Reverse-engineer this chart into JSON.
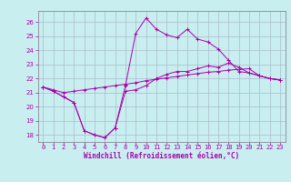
{
  "xlabel": "Windchill (Refroidissement éolien,°C)",
  "background_color": "#c8eef0",
  "grid_color": "#aabbcc",
  "line_color": "#aa00aa",
  "spine_color": "#888899",
  "x_values": [
    0,
    1,
    2,
    3,
    4,
    5,
    6,
    7,
    8,
    9,
    10,
    11,
    12,
    13,
    14,
    15,
    16,
    17,
    18,
    19,
    20,
    21,
    22,
    23
  ],
  "line1_y": [
    21.4,
    21.1,
    20.7,
    20.3,
    18.3,
    18.0,
    17.8,
    18.5,
    21.1,
    21.2,
    21.5,
    22.0,
    22.3,
    22.5,
    22.5,
    22.7,
    22.9,
    22.8,
    23.1,
    22.8,
    22.4,
    22.2,
    22.0,
    21.9
  ],
  "line2_y": [
    21.4,
    21.1,
    20.7,
    20.3,
    18.3,
    18.0,
    17.8,
    18.5,
    21.5,
    25.2,
    26.3,
    25.5,
    25.1,
    24.9,
    25.5,
    24.8,
    24.6,
    24.1,
    23.3,
    22.5,
    22.4,
    22.2,
    22.0,
    21.9
  ],
  "line3_y": [
    21.4,
    21.2,
    21.0,
    21.1,
    21.2,
    21.3,
    21.4,
    21.5,
    21.6,
    21.7,
    21.85,
    21.95,
    22.05,
    22.15,
    22.25,
    22.35,
    22.45,
    22.5,
    22.6,
    22.65,
    22.7,
    22.2,
    22.0,
    21.9
  ],
  "ylim": [
    17.5,
    26.8
  ],
  "xlim": [
    -0.5,
    23.5
  ],
  "yticks": [
    18,
    19,
    20,
    21,
    22,
    23,
    24,
    25,
    26
  ],
  "xticks": [
    0,
    1,
    2,
    3,
    4,
    5,
    6,
    7,
    8,
    9,
    10,
    11,
    12,
    13,
    14,
    15,
    16,
    17,
    18,
    19,
    20,
    21,
    22,
    23
  ],
  "tick_fontsize": 5.0,
  "xlabel_fontsize": 5.5
}
